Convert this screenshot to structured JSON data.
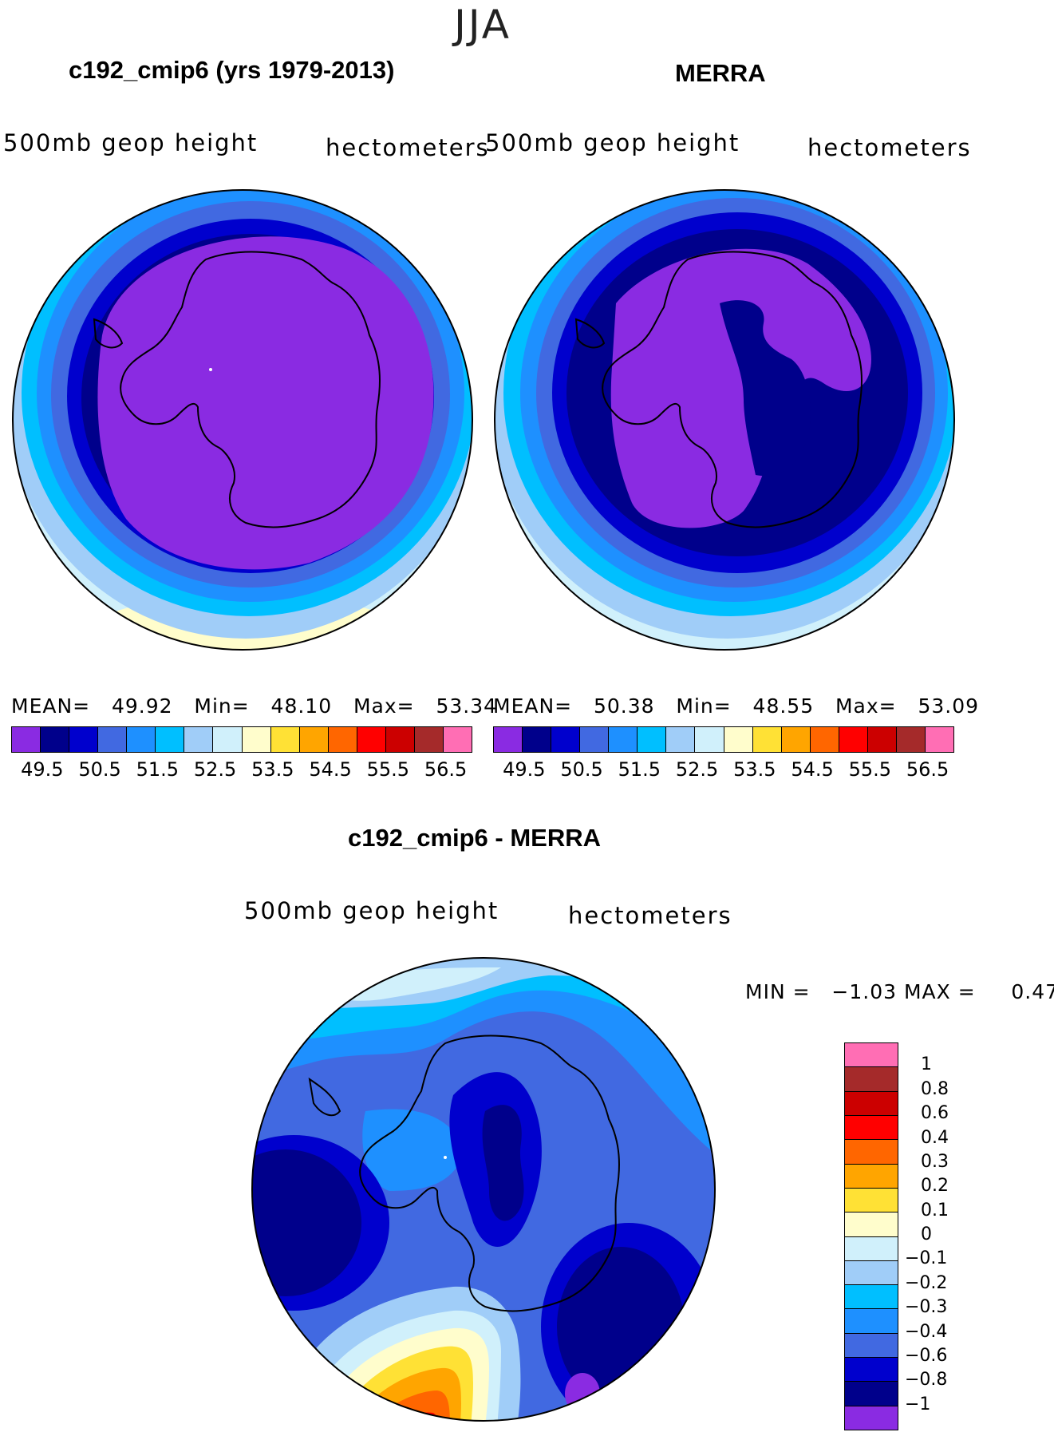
{
  "figure": {
    "season": "JJA",
    "palette": [
      "#8a2be2",
      "#00008b",
      "#0000cd",
      "#4169e1",
      "#1e90ff",
      "#00bfff",
      "#a0cdf8",
      "#d0f0fb",
      "#fffdcc",
      "#ffe135",
      "#ffa500",
      "#ff6600",
      "#ff0000",
      "#cc0000",
      "#a52a2a",
      "#ff6eb4"
    ]
  },
  "panels": {
    "model": {
      "title": "c192_cmip6 (yrs 1979-2013)",
      "variable": "500mb geop height",
      "units": "hectometers",
      "mean_label": "MEAN=",
      "mean": "49.92",
      "min_label": "Min=",
      "min": "48.10",
      "max_label": "Max=",
      "max": "53.34",
      "colorbar_ticks": [
        "49.5",
        "50.5",
        "51.5",
        "52.5",
        "53.5",
        "54.5",
        "55.5",
        "56.5"
      ]
    },
    "obs": {
      "title": "MERRA",
      "variable": "500mb geop height",
      "units": "hectometers",
      "mean_label": "MEAN=",
      "mean": "50.38",
      "min_label": "Min=",
      "min": "48.55",
      "max_label": "Max=",
      "max": "53.09",
      "colorbar_ticks": [
        "49.5",
        "50.5",
        "51.5",
        "52.5",
        "53.5",
        "54.5",
        "55.5",
        "56.5"
      ]
    },
    "diff": {
      "title": "c192_cmip6 - MERRA",
      "variable": "500mb geop height",
      "units": "hectometers",
      "min_label": "MIN =",
      "min": "−1.03",
      "max_label": "MAX =",
      "max": "0.47",
      "colorbar_labels": [
        "1",
        "0.8",
        "0.6",
        "0.4",
        "0.3",
        "0.2",
        "0.1",
        "0",
        "−0.1",
        "−0.2",
        "−0.3",
        "−0.4",
        "−0.6",
        "−0.8",
        "−1"
      ]
    }
  },
  "chart_data": [
    {
      "type": "map",
      "projection": "south polar stereographic",
      "title": "c192_cmip6 (yrs 1979-2013)",
      "field": "500mb geop height",
      "units": "hectometers",
      "mean": 49.92,
      "min": 48.1,
      "max": 53.34,
      "contour_levels": [
        49.5,
        50,
        50.5,
        51,
        51.5,
        52,
        52.5,
        53,
        53.5,
        54,
        54.5,
        55,
        55.5,
        56,
        56.5
      ]
    },
    {
      "type": "map",
      "projection": "south polar stereographic",
      "title": "MERRA",
      "field": "500mb geop height",
      "units": "hectometers",
      "mean": 50.38,
      "min": 48.55,
      "max": 53.09,
      "contour_levels": [
        49.5,
        50,
        50.5,
        51,
        51.5,
        52,
        52.5,
        53,
        53.5,
        54,
        54.5,
        55,
        55.5,
        56,
        56.5
      ]
    },
    {
      "type": "map",
      "projection": "south polar stereographic",
      "title": "c192_cmip6 - MERRA",
      "field": "500mb geop height",
      "units": "hectometers",
      "min": -1.03,
      "max": 0.47,
      "contour_levels": [
        -1,
        -0.8,
        -0.6,
        -0.4,
        -0.3,
        -0.2,
        -0.1,
        0,
        0.1,
        0.2,
        0.3,
        0.4,
        0.6,
        0.8,
        1
      ]
    }
  ]
}
